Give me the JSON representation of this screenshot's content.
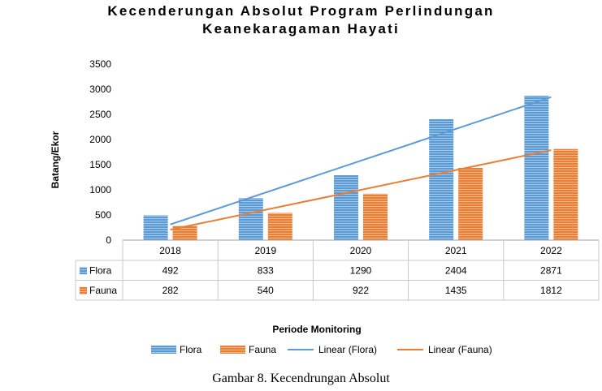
{
  "chart_data": {
    "type": "bar",
    "title_line1": "Kecenderungan Absolut Program Perlindungan",
    "title_line2": "Keanekaragaman Hayati",
    "ylabel": "Batang/Ekor",
    "xlabel": "Periode Monitoring",
    "ylim": [
      0,
      3500
    ],
    "yticks": [
      "0",
      "500",
      "1000",
      "1500",
      "2000",
      "2500",
      "3000",
      "3500"
    ],
    "categories": [
      "2018",
      "2019",
      "2020",
      "2021",
      "2022"
    ],
    "series": [
      {
        "name": "Flora",
        "values": [
          492,
          833,
          1290,
          2404,
          2871
        ],
        "color": "#5B9BD5"
      },
      {
        "name": "Fauna",
        "values": [
          282,
          540,
          922,
          1435,
          1812
        ],
        "color": "#ED7D31"
      }
    ],
    "trendlines": [
      {
        "name": "Linear (Flora)",
        "color": "#5B9BD5"
      },
      {
        "name": "Linear (Fauna)",
        "color": "#ED7D31"
      }
    ],
    "data_table": true,
    "legend_position": "bottom"
  },
  "caption": "Gambar 8. Kecendrungan Absolut"
}
